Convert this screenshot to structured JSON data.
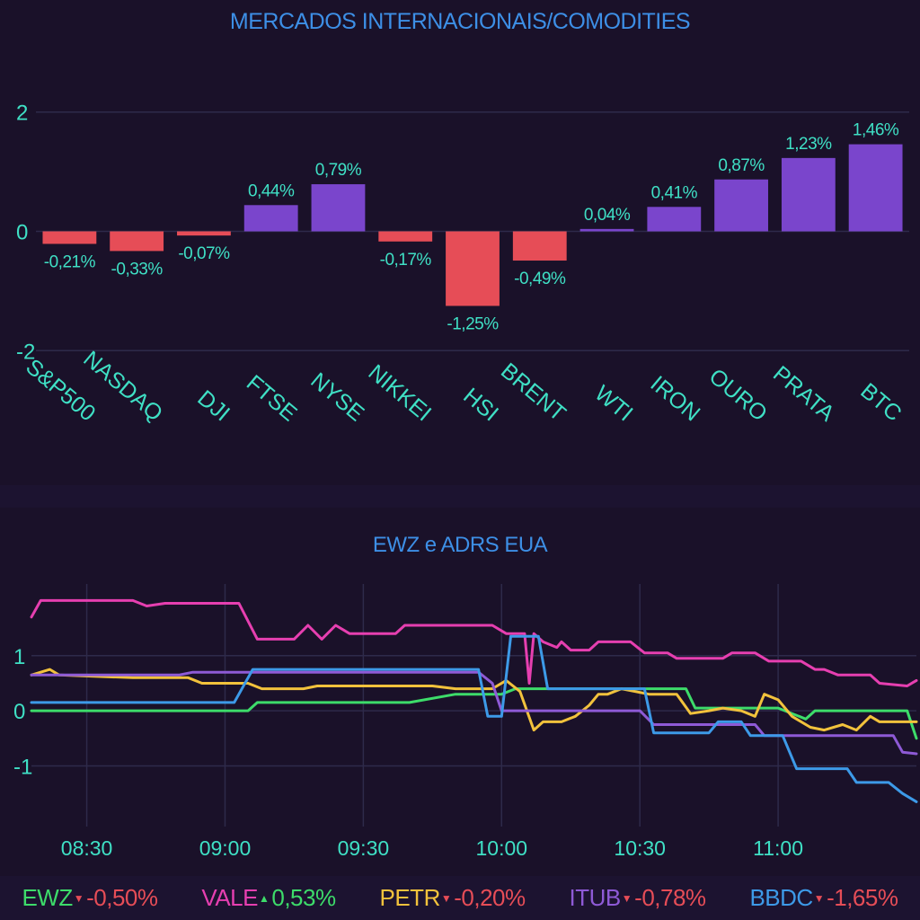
{
  "chart_data": [
    {
      "type": "bar",
      "title": "MERCADOS INTERNACIONAIS/COMODITIES",
      "categories": [
        "S&P500",
        "NASDAQ",
        "DJI",
        "FTSE",
        "NYSE",
        "NIKKEI",
        "HSI",
        "BRENT",
        "WTI",
        "IRON",
        "OURO",
        "PRATA",
        "BTC"
      ],
      "values": [
        -0.21,
        -0.33,
        -0.07,
        0.44,
        0.79,
        -0.17,
        -1.25,
        -0.49,
        0.04,
        0.41,
        0.87,
        1.23,
        1.46
      ],
      "data_labels": [
        "-0,21%",
        "-0,33%",
        "-0,07%",
        "0,44%",
        "0,79%",
        "-0,17%",
        "-1,25%",
        "-0,49%",
        "0,04%",
        "0,41%",
        "0,87%",
        "1,23%",
        "1,46%"
      ],
      "ylim": [
        -2.9,
        2.9
      ],
      "yticks": [
        -2,
        0,
        2
      ],
      "ytick_labels": [
        "-2",
        "0",
        "2"
      ],
      "grid": true,
      "colors": {
        "positive": "#7a45cc",
        "negative": "#e64d57"
      }
    },
    {
      "type": "line",
      "title": "EWZ e ADRS EUA",
      "x_range": [
        "08:18",
        "11:30"
      ],
      "xticks": [
        "08:30",
        "09:00",
        "09:30",
        "10:00",
        "10:30",
        "11:00"
      ],
      "ylim": [
        -2.1,
        2.3
      ],
      "yticks": [
        -1,
        0,
        1
      ],
      "ytick_labels": [
        "-1",
        "0",
        "1"
      ],
      "grid": true,
      "series": [
        {
          "name": "EWZ",
          "color": "#3ddc6a",
          "points": [
            [
              "08:18",
              0.0
            ],
            [
              "09:05",
              0.0
            ],
            [
              "09:07",
              0.15
            ],
            [
              "09:40",
              0.15
            ],
            [
              "09:50",
              0.3
            ],
            [
              "10:00",
              0.3
            ],
            [
              "10:03",
              0.4
            ],
            [
              "10:40",
              0.4
            ],
            [
              "10:42",
              0.05
            ],
            [
              "11:00",
              0.05
            ],
            [
              "11:06",
              -0.15
            ],
            [
              "11:08",
              0.0
            ],
            [
              "11:28",
              0.0
            ],
            [
              "11:30",
              -0.5
            ]
          ]
        },
        {
          "name": "VALE",
          "color": "#e63fb0",
          "points": [
            [
              "08:18",
              1.7
            ],
            [
              "08:20",
              2.0
            ],
            [
              "08:40",
              2.0
            ],
            [
              "08:43",
              1.9
            ],
            [
              "08:47",
              1.95
            ],
            [
              "09:03",
              1.95
            ],
            [
              "09:07",
              1.3
            ],
            [
              "09:15",
              1.3
            ],
            [
              "09:18",
              1.55
            ],
            [
              "09:21",
              1.3
            ],
            [
              "09:24",
              1.55
            ],
            [
              "09:27",
              1.4
            ],
            [
              "09:37",
              1.4
            ],
            [
              "09:39",
              1.55
            ],
            [
              "09:58",
              1.55
            ],
            [
              "10:01",
              1.4
            ],
            [
              "10:05",
              1.4
            ],
            [
              "10:06",
              0.5
            ],
            [
              "10:07",
              1.4
            ],
            [
              "10:09",
              1.25
            ],
            [
              "10:12",
              1.15
            ],
            [
              "10:13",
              1.25
            ],
            [
              "10:15",
              1.1
            ],
            [
              "10:19",
              1.1
            ],
            [
              "10:21",
              1.25
            ],
            [
              "10:28",
              1.25
            ],
            [
              "10:31",
              1.05
            ],
            [
              "10:36",
              1.05
            ],
            [
              "10:38",
              0.95
            ],
            [
              "10:48",
              0.95
            ],
            [
              "10:50",
              1.05
            ],
            [
              "10:55",
              1.05
            ],
            [
              "10:58",
              0.9
            ],
            [
              "11:05",
              0.9
            ],
            [
              "11:08",
              0.75
            ],
            [
              "11:10",
              0.75
            ],
            [
              "11:13",
              0.65
            ],
            [
              "11:20",
              0.65
            ],
            [
              "11:22",
              0.5
            ],
            [
              "11:28",
              0.45
            ],
            [
              "11:30",
              0.55
            ]
          ]
        },
        {
          "name": "PETR",
          "color": "#f2c23c",
          "points": [
            [
              "08:18",
              0.65
            ],
            [
              "08:22",
              0.75
            ],
            [
              "08:24",
              0.65
            ],
            [
              "08:40",
              0.6
            ],
            [
              "08:52",
              0.6
            ],
            [
              "08:55",
              0.5
            ],
            [
              "09:05",
              0.5
            ],
            [
              "09:08",
              0.4
            ],
            [
              "09:17",
              0.4
            ],
            [
              "09:20",
              0.45
            ],
            [
              "09:45",
              0.45
            ],
            [
              "09:50",
              0.4
            ],
            [
              "09:58",
              0.4
            ],
            [
              "10:01",
              0.55
            ],
            [
              "10:04",
              0.35
            ],
            [
              "10:07",
              -0.35
            ],
            [
              "10:09",
              -0.2
            ],
            [
              "10:13",
              -0.2
            ],
            [
              "10:16",
              -0.1
            ],
            [
              "10:19",
              0.1
            ],
            [
              "10:21",
              0.3
            ],
            [
              "10:23",
              0.3
            ],
            [
              "10:26",
              0.4
            ],
            [
              "10:32",
              0.3
            ],
            [
              "10:38",
              0.3
            ],
            [
              "10:41",
              -0.05
            ],
            [
              "10:45",
              0.0
            ],
            [
              "10:48",
              0.05
            ],
            [
              "10:52",
              0.0
            ],
            [
              "10:55",
              -0.1
            ],
            [
              "10:57",
              0.3
            ],
            [
              "11:00",
              0.2
            ],
            [
              "11:03",
              -0.1
            ],
            [
              "11:07",
              -0.3
            ],
            [
              "11:10",
              -0.35
            ],
            [
              "11:14",
              -0.25
            ],
            [
              "11:17",
              -0.35
            ],
            [
              "11:20",
              -0.1
            ],
            [
              "11:22",
              -0.2
            ],
            [
              "11:30",
              -0.2
            ]
          ]
        },
        {
          "name": "ITUB",
          "color": "#8e5ad6",
          "points": [
            [
              "08:18",
              0.65
            ],
            [
              "08:50",
              0.65
            ],
            [
              "08:53",
              0.7
            ],
            [
              "09:55",
              0.7
            ],
            [
              "09:58",
              0.5
            ],
            [
              "10:00",
              0.0
            ],
            [
              "10:30",
              0.0
            ],
            [
              "10:33",
              -0.25
            ],
            [
              "10:55",
              -0.25
            ],
            [
              "10:57",
              -0.45
            ],
            [
              "11:25",
              -0.45
            ],
            [
              "11:27",
              -0.75
            ],
            [
              "11:30",
              -0.78
            ]
          ]
        },
        {
          "name": "BBDC",
          "color": "#3d9ae8",
          "points": [
            [
              "08:18",
              0.15
            ],
            [
              "09:02",
              0.15
            ],
            [
              "09:06",
              0.75
            ],
            [
              "09:55",
              0.75
            ],
            [
              "09:57",
              -0.1
            ],
            [
              "10:00",
              -0.1
            ],
            [
              "10:02",
              1.35
            ],
            [
              "10:08",
              1.35
            ],
            [
              "10:10",
              0.4
            ],
            [
              "10:31",
              0.4
            ],
            [
              "10:33",
              -0.4
            ],
            [
              "10:45",
              -0.4
            ],
            [
              "10:47",
              -0.2
            ],
            [
              "10:52",
              -0.2
            ],
            [
              "10:54",
              -0.45
            ],
            [
              "11:01",
              -0.45
            ],
            [
              "11:04",
              -1.05
            ],
            [
              "11:15",
              -1.05
            ],
            [
              "11:17",
              -1.3
            ],
            [
              "11:24",
              -1.3
            ],
            [
              "11:27",
              -1.5
            ],
            [
              "11:30",
              -1.65
            ]
          ]
        }
      ]
    }
  ],
  "legend": [
    {
      "name": "EWZ",
      "direction": "down",
      "change": "-0,50%",
      "name_color": "#3ddc6a",
      "change_color": "#e64d57"
    },
    {
      "name": "VALE",
      "direction": "up",
      "change": "0,53%",
      "name_color": "#e63fb0",
      "change_color": "#3ddc6a"
    },
    {
      "name": "PETR",
      "direction": "down",
      "change": "-0,20%",
      "name_color": "#f2c23c",
      "change_color": "#e64d57"
    },
    {
      "name": "ITUB",
      "direction": "down",
      "change": "-0,78%",
      "name_color": "#8e5ad6",
      "change_color": "#e64d57"
    },
    {
      "name": "BBDC",
      "direction": "down",
      "change": "-1,65%",
      "name_color": "#3d9ae8",
      "change_color": "#e64d57"
    }
  ],
  "colors": {
    "axis_text": "#3fe0c5",
    "title_text": "#3d8fe6",
    "grid": "#2e2a4a",
    "background": "#1c1330"
  }
}
